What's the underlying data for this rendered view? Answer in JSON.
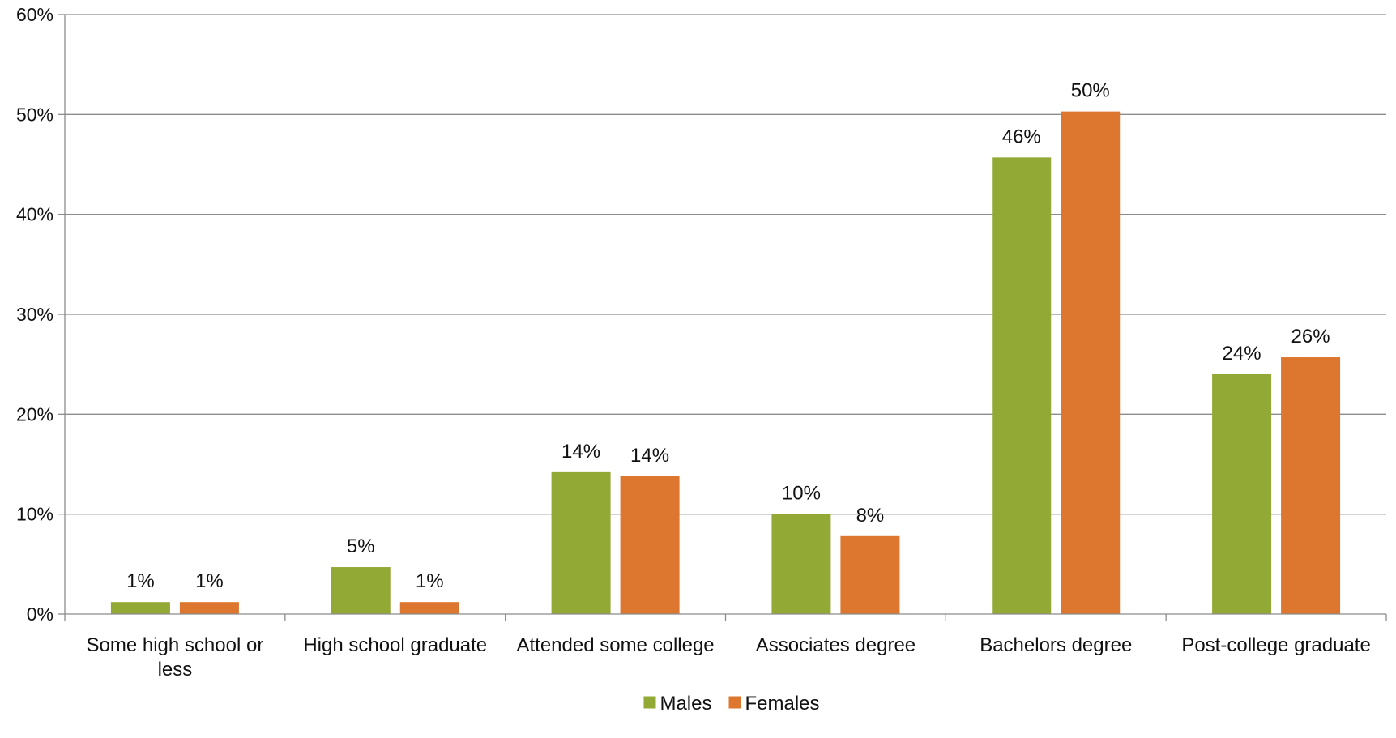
{
  "chart_data": {
    "type": "bar",
    "title": "",
    "xlabel": "",
    "ylabel": "",
    "ylim": [
      0,
      60
    ],
    "y_ticks": [
      0,
      10,
      20,
      30,
      40,
      50,
      60
    ],
    "y_tick_labels": [
      "0%",
      "10%",
      "20%",
      "30%",
      "40%",
      "50%",
      "60%"
    ],
    "grid": true,
    "legend_position": "bottom-center",
    "categories": [
      "Some high school or less",
      "High school graduate",
      "Attended some college",
      "Associates degree",
      "Bachelors degree",
      "Post-college graduate"
    ],
    "series": [
      {
        "name": "Males",
        "color": "#93a935",
        "values": [
          1.2,
          4.7,
          14.2,
          10.0,
          45.7,
          24.0
        ],
        "labels": [
          "1%",
          "5%",
          "14%",
          "10%",
          "46%",
          "24%"
        ]
      },
      {
        "name": "Females",
        "color": "#dd762f",
        "values": [
          1.2,
          1.2,
          13.8,
          7.8,
          50.3,
          25.7
        ],
        "labels": [
          "1%",
          "1%",
          "14%",
          "8%",
          "50%",
          "26%"
        ]
      }
    ]
  }
}
